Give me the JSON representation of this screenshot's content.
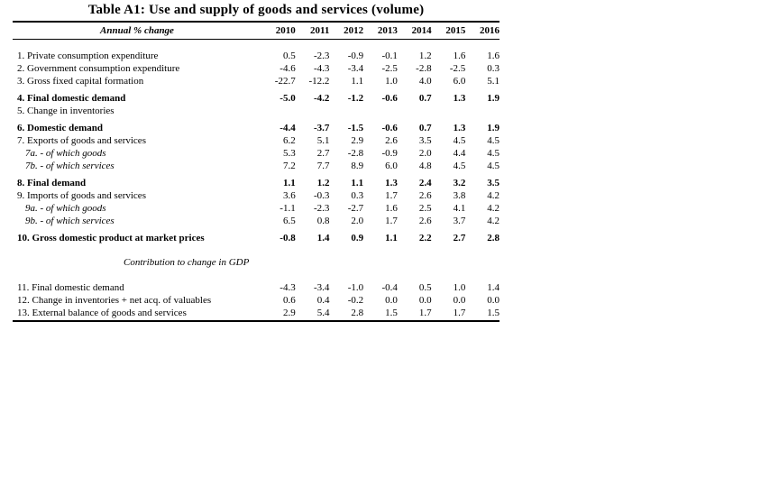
{
  "page": {
    "background": "#ffffff",
    "text_color": "#000000",
    "rule_color": "#000000"
  },
  "table": {
    "title": "Table A1: Use and supply of goods and services (volume)",
    "header": {
      "label": "Annual % change",
      "years": [
        "2010",
        "2011",
        "2012",
        "2013",
        "2014",
        "2015",
        "2016"
      ]
    },
    "rows": [
      {
        "label": "1. Private consumption expenditure",
        "values": [
          "0.5",
          "-2.3",
          "-0.9",
          "-0.1",
          "1.2",
          "1.6",
          "1.6"
        ]
      },
      {
        "label": "2. Government consumption expenditure",
        "values": [
          "-4.6",
          "-4.3",
          "-3.4",
          "-2.5",
          "-2.8",
          "-2.5",
          "0.3"
        ]
      },
      {
        "label": "3. Gross fixed capital formation",
        "values": [
          "-22.7",
          "-12.2",
          "1.1",
          "1.0",
          "4.0",
          "6.0",
          "5.1"
        ]
      },
      {
        "label": "4. Final domestic demand",
        "bold": true,
        "space": true,
        "values": [
          "-5.0",
          "-4.2",
          "-1.2",
          "-0.6",
          "0.7",
          "1.3",
          "1.9"
        ]
      },
      {
        "label": "5. Change in inventories",
        "values": [
          "",
          "",
          "",
          "",
          "",
          "",
          ""
        ]
      },
      {
        "label": "6. Domestic demand",
        "bold": true,
        "space": true,
        "values": [
          "-4.4",
          "-3.7",
          "-1.5",
          "-0.6",
          "0.7",
          "1.3",
          "1.9"
        ]
      },
      {
        "label": "7. Exports of goods and services",
        "values": [
          "6.2",
          "5.1",
          "2.9",
          "2.6",
          "3.5",
          "4.5",
          "4.5"
        ]
      },
      {
        "label": "7a.  - of which goods",
        "sub": true,
        "values": [
          "5.3",
          "2.7",
          "-2.8",
          "-0.9",
          "2.0",
          "4.4",
          "4.5"
        ]
      },
      {
        "label": "7b.  - of which services",
        "sub": true,
        "values": [
          "7.2",
          "7.7",
          "8.9",
          "6.0",
          "4.8",
          "4.5",
          "4.5"
        ]
      },
      {
        "label": "8. Final demand",
        "bold": true,
        "space": true,
        "values": [
          "1.1",
          "1.2",
          "1.1",
          "1.3",
          "2.4",
          "3.2",
          "3.5"
        ]
      },
      {
        "label": "9. Imports of goods and services",
        "values": [
          "3.6",
          "-0.3",
          "0.3",
          "1.7",
          "2.6",
          "3.8",
          "4.2"
        ]
      },
      {
        "label": "9a.  - of which goods",
        "sub": true,
        "values": [
          "-1.1",
          "-2.3",
          "-2.7",
          "1.6",
          "2.5",
          "4.1",
          "4.2"
        ]
      },
      {
        "label": "9b.  - of which services",
        "sub": true,
        "values": [
          "6.5",
          "0.8",
          "2.0",
          "1.7",
          "2.6",
          "3.7",
          "4.2"
        ]
      },
      {
        "label": "10. Gross domestic product at market prices",
        "bold": true,
        "space": true,
        "values": [
          "-0.8",
          "1.4",
          "0.9",
          "1.1",
          "2.2",
          "2.7",
          "2.8"
        ]
      },
      {
        "type": "section",
        "label": "Contribution to change in GDP"
      },
      {
        "label": "11. Final domestic demand",
        "values": [
          "-4.3",
          "-3.4",
          "-1.0",
          "-0.4",
          "0.5",
          "1.0",
          "1.4"
        ]
      },
      {
        "label": "12. Change in inventories + net acq. of valuables",
        "values": [
          "0.6",
          "0.4",
          "-0.2",
          "0.0",
          "0.0",
          "0.0",
          "0.0"
        ]
      },
      {
        "label": "13. External balance of goods and services",
        "values": [
          "2.9",
          "5.4",
          "2.8",
          "1.5",
          "1.7",
          "1.7",
          "1.5"
        ]
      }
    ]
  }
}
